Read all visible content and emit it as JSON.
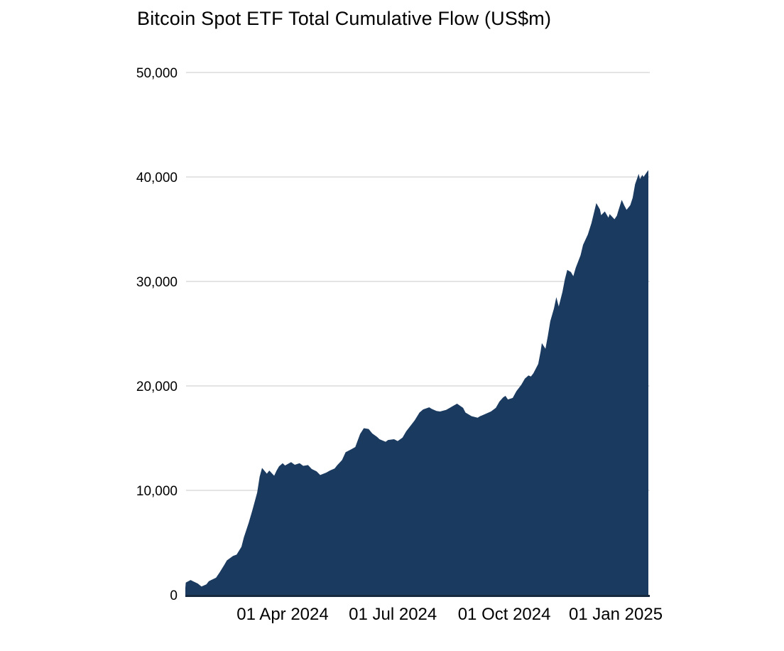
{
  "title": "Bitcoin Spot ETF Total Cumulative Flow (US$m)",
  "colors": {
    "background": "#ffffff",
    "area_fill": "#1a3a60",
    "axis_line": "#16293f",
    "gridline": "#c8c8c8",
    "text": "#000000"
  },
  "chart_data": {
    "type": "area",
    "title": "Bitcoin Spot ETF Total Cumulative Flow (US$m)",
    "xlabel": "",
    "ylabel": "",
    "ylim": [
      0,
      50000
    ],
    "grid": "horizontal",
    "legend": "none",
    "y_ticks": [
      {
        "value": 0,
        "label": "0"
      },
      {
        "value": 10000,
        "label": "10,000"
      },
      {
        "value": 20000,
        "label": "20,000"
      },
      {
        "value": 30000,
        "label": "30,000"
      },
      {
        "value": 40000,
        "label": "40,000"
      },
      {
        "value": 50000,
        "label": "50,000"
      }
    ],
    "x_ticks": [
      {
        "date": "2024-04-01",
        "label": "01 Apr 2024"
      },
      {
        "date": "2024-07-01",
        "label": "01 Jul 2024"
      },
      {
        "date": "2024-10-01",
        "label": "01 Oct 2024"
      },
      {
        "date": "2025-01-01",
        "label": "01 Jan 2025"
      }
    ],
    "series": [
      {
        "name": "Total Cumulative Flow (US$m)",
        "points": [
          [
            "2024-01-11",
            655
          ],
          [
            "2024-01-12",
            1170
          ],
          [
            "2024-01-16",
            1420
          ],
          [
            "2024-01-18",
            1300
          ],
          [
            "2024-01-22",
            1080
          ],
          [
            "2024-01-25",
            800
          ],
          [
            "2024-01-29",
            1000
          ],
          [
            "2024-01-31",
            1300
          ],
          [
            "2024-02-02",
            1420
          ],
          [
            "2024-02-06",
            1640
          ],
          [
            "2024-02-09",
            2150
          ],
          [
            "2024-02-13",
            2900
          ],
          [
            "2024-02-15",
            3300
          ],
          [
            "2024-02-20",
            3720
          ],
          [
            "2024-02-23",
            3850
          ],
          [
            "2024-02-27",
            4600
          ],
          [
            "2024-02-29",
            5500
          ],
          [
            "2024-03-04",
            6900
          ],
          [
            "2024-03-07",
            8100
          ],
          [
            "2024-03-11",
            9800
          ],
          [
            "2024-03-13",
            11300
          ],
          [
            "2024-03-15",
            12150
          ],
          [
            "2024-03-19",
            11600
          ],
          [
            "2024-03-21",
            11900
          ],
          [
            "2024-03-25",
            11400
          ],
          [
            "2024-03-27",
            11900
          ],
          [
            "2024-03-29",
            12300
          ],
          [
            "2024-04-01",
            12600
          ],
          [
            "2024-04-03",
            12380
          ],
          [
            "2024-04-08",
            12700
          ],
          [
            "2024-04-11",
            12450
          ],
          [
            "2024-04-15",
            12600
          ],
          [
            "2024-04-18",
            12350
          ],
          [
            "2024-04-22",
            12420
          ],
          [
            "2024-04-25",
            12050
          ],
          [
            "2024-04-29",
            11820
          ],
          [
            "2024-05-02",
            11470
          ],
          [
            "2024-05-07",
            11700
          ],
          [
            "2024-05-10",
            11900
          ],
          [
            "2024-05-14",
            12100
          ],
          [
            "2024-05-16",
            12400
          ],
          [
            "2024-05-20",
            12900
          ],
          [
            "2024-05-23",
            13650
          ],
          [
            "2024-05-28",
            13950
          ],
          [
            "2024-05-31",
            14150
          ],
          [
            "2024-06-04",
            15400
          ],
          [
            "2024-06-07",
            15950
          ],
          [
            "2024-06-11",
            15880
          ],
          [
            "2024-06-14",
            15450
          ],
          [
            "2024-06-18",
            15120
          ],
          [
            "2024-06-20",
            14900
          ],
          [
            "2024-06-25",
            14650
          ],
          [
            "2024-06-27",
            14820
          ],
          [
            "2024-07-02",
            14900
          ],
          [
            "2024-07-05",
            14720
          ],
          [
            "2024-07-09",
            15050
          ],
          [
            "2024-07-12",
            15650
          ],
          [
            "2024-07-16",
            16250
          ],
          [
            "2024-07-19",
            16700
          ],
          [
            "2024-07-23",
            17450
          ],
          [
            "2024-07-26",
            17750
          ],
          [
            "2024-07-31",
            17950
          ],
          [
            "2024-08-02",
            17800
          ],
          [
            "2024-08-06",
            17600
          ],
          [
            "2024-08-09",
            17550
          ],
          [
            "2024-08-14",
            17700
          ],
          [
            "2024-08-20",
            18100
          ],
          [
            "2024-08-23",
            18300
          ],
          [
            "2024-08-28",
            17900
          ],
          [
            "2024-08-30",
            17450
          ],
          [
            "2024-09-04",
            17100
          ],
          [
            "2024-09-09",
            16950
          ],
          [
            "2024-09-11",
            17100
          ],
          [
            "2024-09-13",
            17200
          ],
          [
            "2024-09-17",
            17400
          ],
          [
            "2024-09-20",
            17550
          ],
          [
            "2024-09-24",
            17900
          ],
          [
            "2024-09-27",
            18500
          ],
          [
            "2024-09-30",
            18900
          ],
          [
            "2024-10-02",
            19050
          ],
          [
            "2024-10-04",
            18700
          ],
          [
            "2024-10-08",
            18850
          ],
          [
            "2024-10-11",
            19500
          ],
          [
            "2024-10-15",
            20100
          ],
          [
            "2024-10-18",
            20700
          ],
          [
            "2024-10-21",
            21000
          ],
          [
            "2024-10-23",
            20900
          ],
          [
            "2024-10-25",
            21200
          ],
          [
            "2024-10-29",
            22100
          ],
          [
            "2024-10-31",
            23300
          ],
          [
            "2024-11-01",
            24100
          ],
          [
            "2024-11-04",
            23550
          ],
          [
            "2024-11-06",
            24800
          ],
          [
            "2024-11-08",
            26200
          ],
          [
            "2024-11-11",
            27400
          ],
          [
            "2024-11-13",
            28500
          ],
          [
            "2024-11-15",
            27600
          ],
          [
            "2024-11-18",
            29000
          ],
          [
            "2024-11-20",
            30200
          ],
          [
            "2024-11-22",
            31100
          ],
          [
            "2024-11-25",
            30900
          ],
          [
            "2024-11-27",
            30500
          ],
          [
            "2024-11-29",
            31300
          ],
          [
            "2024-12-03",
            32500
          ],
          [
            "2024-12-05",
            33500
          ],
          [
            "2024-12-09",
            34500
          ],
          [
            "2024-12-12",
            35600
          ],
          [
            "2024-12-16",
            37500
          ],
          [
            "2024-12-19",
            36900
          ],
          [
            "2024-12-20",
            36350
          ],
          [
            "2024-12-23",
            36700
          ],
          [
            "2024-12-26",
            36100
          ],
          [
            "2024-12-27",
            36450
          ],
          [
            "2024-12-31",
            35950
          ],
          [
            "2025-01-02",
            36300
          ],
          [
            "2025-01-03",
            36700
          ],
          [
            "2025-01-06",
            37800
          ],
          [
            "2025-01-08",
            37300
          ],
          [
            "2025-01-10",
            36850
          ],
          [
            "2025-01-13",
            37300
          ],
          [
            "2025-01-15",
            38000
          ],
          [
            "2025-01-17",
            39300
          ],
          [
            "2025-01-20",
            40300
          ],
          [
            "2025-01-21",
            39800
          ],
          [
            "2025-01-23",
            40200
          ],
          [
            "2025-01-24",
            40000
          ],
          [
            "2025-01-27",
            40500
          ],
          [
            "2025-01-28",
            40650
          ]
        ]
      }
    ]
  }
}
